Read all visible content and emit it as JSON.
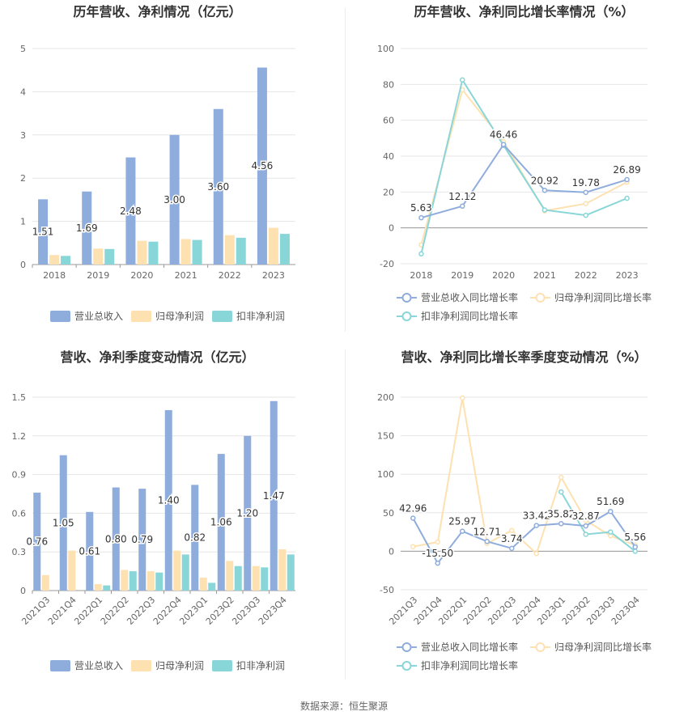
{
  "source": "数据来源：恒生聚源",
  "chart_data": [
    {
      "type": "bar",
      "title": "历年营收、净利情况（亿元）",
      "categories": [
        "2018",
        "2019",
        "2020",
        "2021",
        "2022",
        "2023"
      ],
      "yticks": [
        "0",
        "1",
        "2",
        "3",
        "4",
        "5"
      ],
      "ylim": [
        0,
        5
      ],
      "series": [
        {
          "name": "营业总收入",
          "color": "#8eacdc",
          "values": [
            1.51,
            1.69,
            2.48,
            3.0,
            3.6,
            4.56
          ],
          "labels": [
            "1.51",
            "1.69",
            "2.48",
            "3.00",
            "3.60",
            "4.56"
          ]
        },
        {
          "name": "归母净利润",
          "color": "#fde1b1",
          "values": [
            0.22,
            0.37,
            0.55,
            0.59,
            0.68,
            0.85
          ]
        },
        {
          "name": "扣非净利润",
          "color": "#89d6d8",
          "values": [
            0.2,
            0.36,
            0.53,
            0.57,
            0.62,
            0.71
          ]
        }
      ],
      "legend": "bottom"
    },
    {
      "type": "line",
      "title": "历年营收、净利同比增长率情况（%）",
      "categories": [
        "2018",
        "2019",
        "2020",
        "2021",
        "2022",
        "2023"
      ],
      "yticks": [
        "-20",
        "0",
        "20",
        "40",
        "60",
        "80",
        "100"
      ],
      "ylim": [
        -20,
        100
      ],
      "series": [
        {
          "name": "营业总收入同比增长率",
          "color": "#8eacdc",
          "values": [
            5.63,
            12.12,
            46.46,
            20.92,
            19.78,
            26.89
          ],
          "labels": [
            "5.63",
            "12.12",
            "46.46",
            "20.92",
            "19.78",
            "26.89"
          ]
        },
        {
          "name": "归母净利润同比增长率",
          "color": "#fde1b1",
          "values": [
            -9.5,
            77,
            48,
            9.5,
            13.5,
            25.5
          ]
        },
        {
          "name": "扣非净利润同比增长率",
          "color": "#89d6d8",
          "values": [
            -14.5,
            82.5,
            46,
            10,
            7,
            16.5
          ]
        }
      ],
      "legend": "bottom"
    },
    {
      "type": "bar",
      "title": "营收、净利季度变动情况（亿元）",
      "categories": [
        "2021Q3",
        "2021Q4",
        "2022Q1",
        "2022Q2",
        "2022Q3",
        "2022Q4",
        "2023Q1",
        "2023Q2",
        "2023Q3",
        "2023Q4"
      ],
      "yticks": [
        "0",
        "0.3",
        "0.6",
        "0.9",
        "1.2",
        "1.5"
      ],
      "ylim": [
        0,
        1.5
      ],
      "series": [
        {
          "name": "营业总收入",
          "color": "#8eacdc",
          "values": [
            0.76,
            1.05,
            0.61,
            0.8,
            0.79,
            1.4,
            0.82,
            1.06,
            1.2,
            1.47
          ],
          "labels": [
            "0.76",
            "1.05",
            "0.61",
            "0.80",
            "0.79",
            "1.40",
            "0.82",
            "1.06",
            "1.20",
            "1.47"
          ]
        },
        {
          "name": "归母净利润",
          "color": "#fde1b1",
          "values": [
            0.12,
            0.31,
            0.05,
            0.16,
            0.15,
            0.31,
            0.1,
            0.23,
            0.19,
            0.32
          ]
        },
        {
          "name": "扣非净利润",
          "color": "#89d6d8",
          "values": [
            0.0,
            0.0,
            0.04,
            0.15,
            0.14,
            0.28,
            0.06,
            0.19,
            0.18,
            0.28
          ]
        }
      ],
      "legend": "bottom"
    },
    {
      "type": "line",
      "title": "营收、净利同比增长率季度变动情况（%）",
      "categories": [
        "2021Q3",
        "2021Q4",
        "2022Q1",
        "2022Q2",
        "2022Q3",
        "2022Q4",
        "2023Q1",
        "2023Q2",
        "2023Q3",
        "2023Q4"
      ],
      "yticks": [
        "-50",
        "0",
        "50",
        "100",
        "150",
        "200"
      ],
      "ylim": [
        -50,
        200
      ],
      "series": [
        {
          "name": "营业总收入同比增长率",
          "color": "#8eacdc",
          "values": [
            42.96,
            -15.5,
            25.97,
            12.71,
            3.74,
            33.42,
            35.82,
            32.87,
            51.69,
            5.56
          ],
          "labels": [
            "42.96",
            "-15.50",
            "25.97",
            "12.71",
            "3.74",
            "33.42",
            "35.82",
            "32.87",
            "51.69",
            "5.56"
          ]
        },
        {
          "name": "归母净利润同比增长率",
          "color": "#fde1b1",
          "values": [
            6,
            12,
            199,
            10,
            27,
            -3,
            96,
            40,
            20,
            8
          ]
        },
        {
          "name": "扣非净利润同比增长率",
          "color": "#89d6d8",
          "values": [
            null,
            null,
            null,
            null,
            null,
            null,
            77,
            22,
            25,
            0
          ]
        }
      ],
      "legend": "bottom"
    }
  ]
}
